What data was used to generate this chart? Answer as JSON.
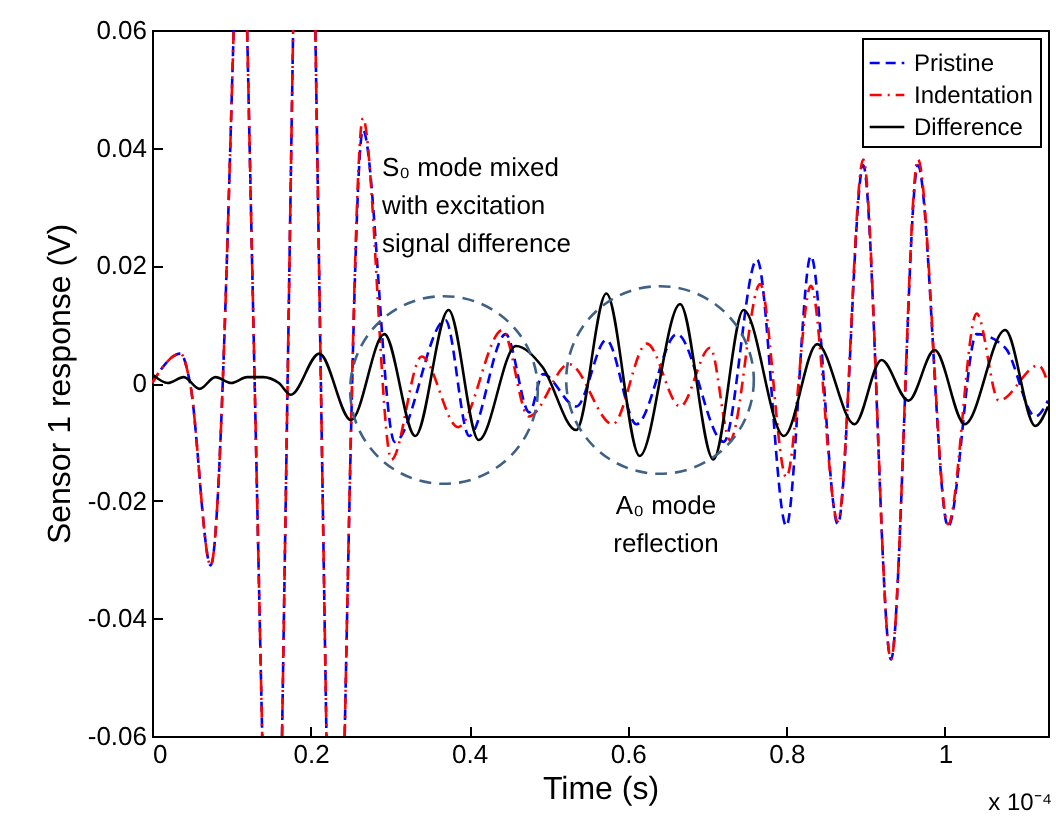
{
  "chart_data": {
    "type": "line",
    "xlabel": "Time (s)",
    "ylabel": "Sensor 1 response (V)",
    "xlim": [
      0,
      1.13
    ],
    "xticks": [
      0,
      0.2,
      0.4,
      0.6,
      0.8,
      1
    ],
    "ylim": [
      -0.06,
      0.06
    ],
    "yticks": [
      -0.06,
      -0.04,
      -0.02,
      0,
      0.02,
      0.04,
      0.06
    ],
    "grid": false,
    "legend": "top right",
    "marker": "none",
    "series": [
      {
        "name": "Pristine",
        "color": "#0000ff",
        "line_style": "dashed",
        "x": [
          0,
          0.036,
          0.048,
          0.074,
          0.103,
          0.111,
          0.12,
          0.139,
          0.151,
          0.164,
          0.178,
          0.192,
          0.206,
          0.22,
          0.232,
          0.243,
          0.266,
          0.306,
          0.37,
          0.4,
          0.446,
          0.476,
          0.493,
          0.535,
          0.573,
          0.611,
          0.662,
          0.721,
          0.763,
          0.8,
          0.831,
          0.865,
          0.897,
          0.932,
          0.966,
          1.004,
          1.04,
          1.076,
          1.114,
          1.13
        ],
        "values": [
          0,
          0.005,
          0,
          -0.031,
          0.06,
          null,
          0.06,
          -0.06,
          null,
          -0.06,
          0.06,
          null,
          0.06,
          -0.06,
          null,
          -0.06,
          0.043,
          -0.01,
          0.0107,
          -0.009,
          0.0083,
          -0.005,
          0.0015,
          -0.004,
          0.0073,
          -0.007,
          0.0083,
          -0.01,
          0.021,
          -0.0243,
          0.0216,
          -0.024,
          0.037,
          -0.047,
          0.037,
          -0.0244,
          0.0083,
          0.006,
          -0.0057,
          -0.003
        ]
      },
      {
        "name": "Indentation",
        "color": "#ff0000",
        "line_style": "dashdot",
        "x": [
          0,
          0.036,
          0.048,
          0.074,
          0.103,
          0.111,
          0.12,
          0.139,
          0.151,
          0.164,
          0.178,
          0.192,
          0.206,
          0.22,
          0.232,
          0.243,
          0.266,
          0.302,
          0.34,
          0.386,
          0.442,
          0.475,
          0.526,
          0.581,
          0.624,
          0.666,
          0.704,
          0.729,
          0.767,
          0.8,
          0.831,
          0.865,
          0.897,
          0.932,
          0.966,
          1.004,
          1.04,
          1.068,
          1.118,
          1.13
        ],
        "values": [
          0,
          0.005,
          0,
          -0.031,
          0.06,
          null,
          0.06,
          -0.06,
          null,
          -0.06,
          0.06,
          null,
          0.06,
          -0.06,
          null,
          -0.06,
          0.045,
          -0.013,
          0.0045,
          -0.0075,
          0.009,
          -0.0057,
          0.0032,
          -0.007,
          0.0067,
          -0.004,
          0.006,
          -0.0097,
          0.0168,
          -0.016,
          0.0165,
          -0.0235,
          0.038,
          -0.047,
          0.038,
          -0.024,
          0.0118,
          -0.003,
          0.003,
          0
        ]
      },
      {
        "name": "Difference",
        "color": "#000000",
        "line_style": "solid",
        "x": [
          0,
          0.02,
          0.04,
          0.06,
          0.08,
          0.1,
          0.12,
          0.14,
          0.16,
          0.175,
          0.211,
          0.251,
          0.293,
          0.332,
          0.374,
          0.412,
          0.459,
          0.492,
          0.535,
          0.573,
          0.615,
          0.666,
          0.708,
          0.746,
          0.797,
          0.839,
          0.886,
          0.92,
          0.954,
          0.987,
          1.025,
          1.076,
          1.114,
          1.13
        ],
        "values": [
          0.0015,
          0,
          0.001,
          -0.001,
          0.001,
          0,
          0.001,
          0.001,
          0,
          -0.002,
          0.005,
          -0.0063,
          0.0083,
          -0.009,
          0.0124,
          -0.0097,
          0.0063,
          0.0028,
          -0.008,
          0.0152,
          -0.0124,
          0.0134,
          -0.013,
          0.0124,
          -0.009,
          0.0066,
          -0.007,
          0.0039,
          -0.003,
          0.0056,
          -0.007,
          0.009,
          -0.0073,
          -0.004
        ]
      }
    ],
    "annotations": [
      "S₀ mode mixed\nwith excitation\nsignal difference",
      "A₀ mode\nreflection",
      "x 10⁻⁴"
    ]
  }
}
